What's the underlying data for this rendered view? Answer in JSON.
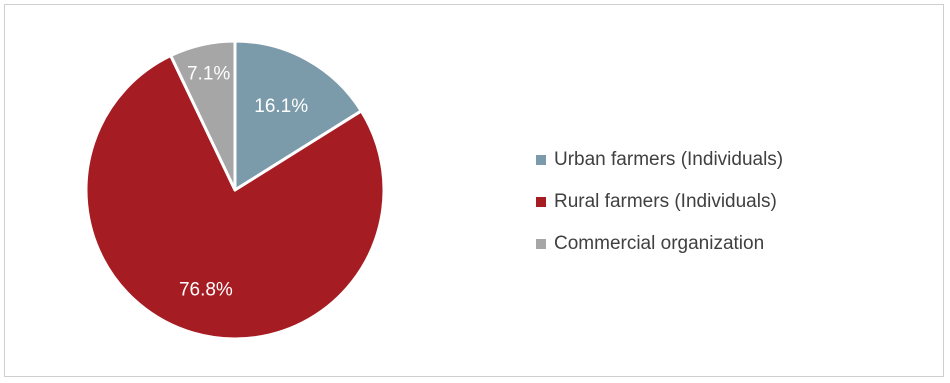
{
  "chart_data": {
    "type": "pie",
    "title": "",
    "slices": [
      {
        "label": "Urban farmers (Individuals)",
        "value": 16.1,
        "value_label": "16.1%",
        "color": "#7b9aaa"
      },
      {
        "label": "Rural farmers (Individuals)",
        "value": 76.8,
        "value_label": "76.8%",
        "color": "#a61c23"
      },
      {
        "label": "Commercial organization",
        "value": 7.1,
        "value_label": "7.1%",
        "color": "#a6a6a6"
      }
    ],
    "start_angle": "12 o'clock",
    "direction": "clockwise",
    "legend_position": "right"
  }
}
